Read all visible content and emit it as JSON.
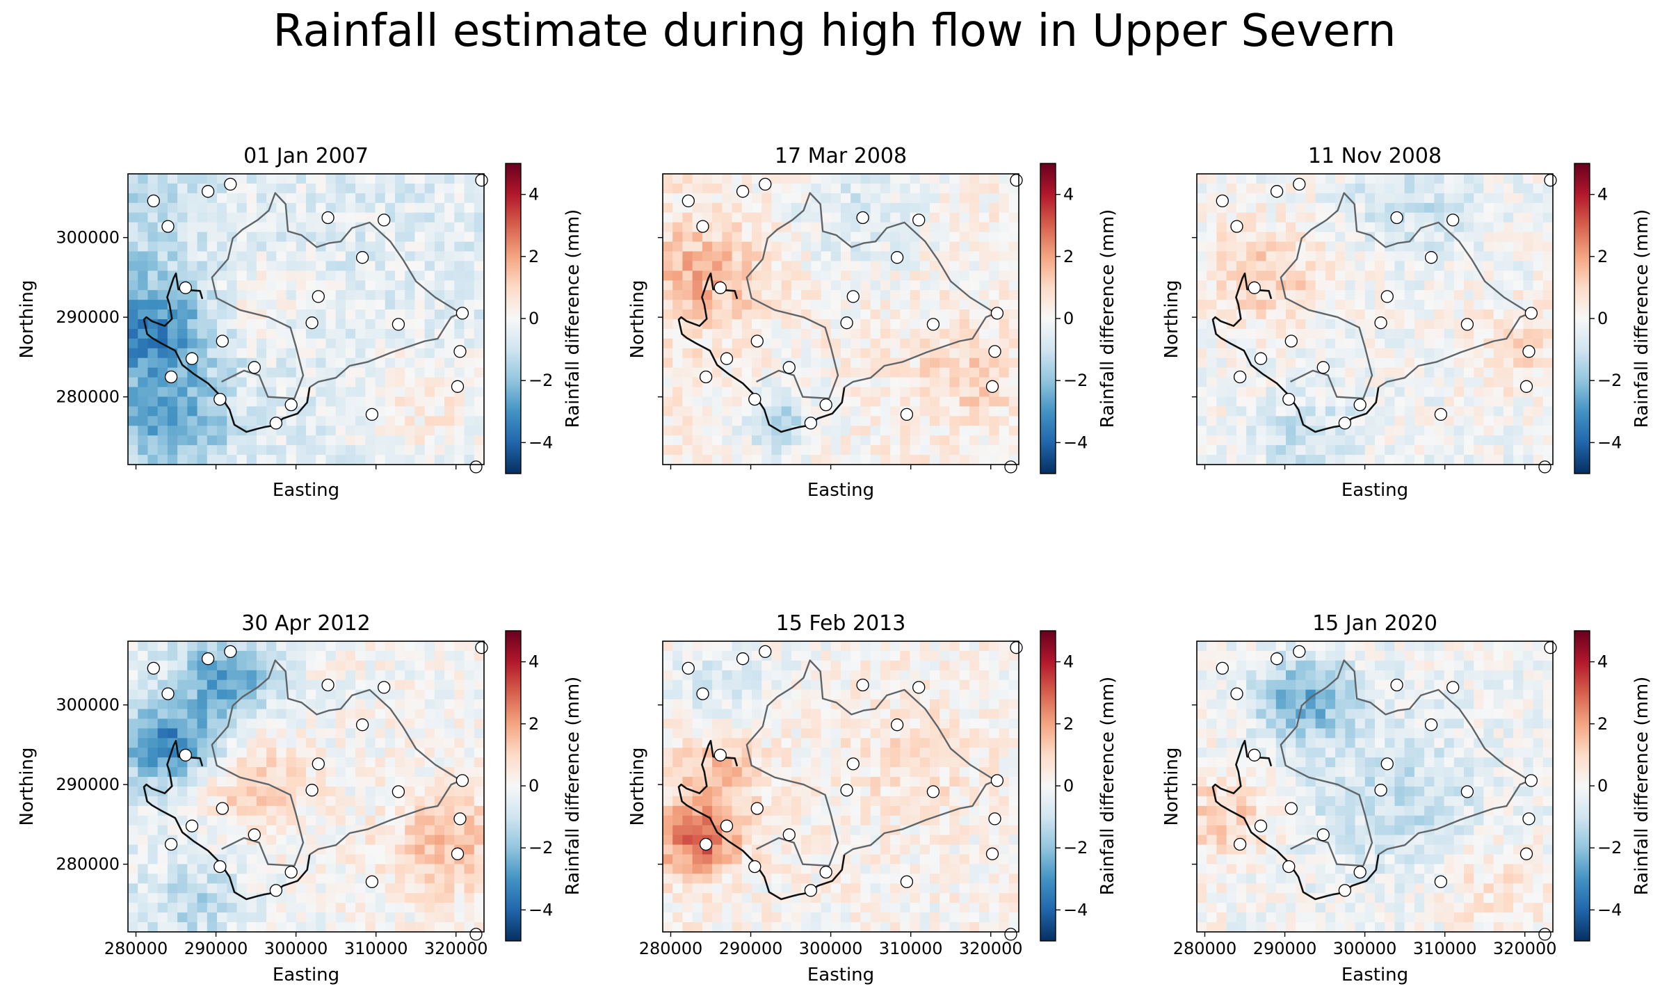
{
  "figure": {
    "title": "Rainfall estimate during high flow in Upper Severn"
  },
  "chart_data": {
    "type": "heatmap",
    "colormap": "RdBu_r",
    "clim": [
      -5,
      5
    ],
    "colorbar": {
      "label": "Rainfall difference (mm)",
      "ticks": [
        4,
        2,
        0,
        -2,
        -4
      ],
      "tick_labels": [
        "4",
        "2",
        "0",
        "−2",
        "−4"
      ]
    },
    "xlabel": "Easting",
    "ylabel": "Northing",
    "xlim": [
      279000,
      323500
    ],
    "ylim": [
      271500,
      308000
    ],
    "x_ticks": [
      280000,
      290000,
      300000,
      310000,
      320000
    ],
    "x_tick_labels": [
      "280000",
      "290000",
      "300000",
      "310000",
      "320000"
    ],
    "y_ticks": [
      300000,
      290000,
      280000
    ],
    "y_tick_labels": [
      "300000",
      "290000",
      "280000"
    ],
    "grid": false,
    "panels": [
      {
        "title": "01 Jan 2007"
      },
      {
        "title": "17 Mar 2008"
      },
      {
        "title": "11 Nov 2008"
      },
      {
        "title": "30 Apr 2012"
      },
      {
        "title": "15 Feb 2013"
      },
      {
        "title": "15 Jan 2020"
      }
    ],
    "gauge_stations": [
      [
        282200,
        304600
      ],
      [
        284000,
        301400
      ],
      [
        289000,
        305800
      ],
      [
        291800,
        306700
      ],
      [
        304000,
        302500
      ],
      [
        311000,
        302200
      ],
      [
        308300,
        297500
      ],
      [
        286200,
        293700
      ],
      [
        302800,
        292600
      ],
      [
        302000,
        289300
      ],
      [
        312800,
        289100
      ],
      [
        320800,
        290500
      ],
      [
        290800,
        287000
      ],
      [
        287000,
        284800
      ],
      [
        294800,
        283700
      ],
      [
        284400,
        282500
      ],
      [
        320500,
        285700
      ],
      [
        290500,
        279700
      ],
      [
        320200,
        281300
      ],
      [
        299400,
        279000
      ],
      [
        309500,
        277800
      ],
      [
        297500,
        276700
      ],
      [
        323200,
        307200
      ],
      [
        322500,
        271200
      ]
    ],
    "catchment_outline": [
      [
        290700,
        281900
      ],
      [
        293500,
        283300
      ],
      [
        295400,
        282700
      ],
      [
        296500,
        280000
      ],
      [
        299800,
        279800
      ],
      [
        300900,
        282700
      ],
      [
        300000,
        286300
      ],
      [
        299300,
        288700
      ],
      [
        296600,
        290000
      ],
      [
        293000,
        290900
      ],
      [
        290100,
        292400
      ],
      [
        289500,
        295000
      ],
      [
        291500,
        297300
      ],
      [
        292100,
        299900
      ],
      [
        293300,
        301000
      ],
      [
        295200,
        302200
      ],
      [
        296600,
        303400
      ],
      [
        297400,
        305600
      ],
      [
        298700,
        304200
      ],
      [
        299000,
        300800
      ],
      [
        300700,
        300300
      ],
      [
        302600,
        298800
      ],
      [
        304100,
        299300
      ],
      [
        305600,
        299500
      ],
      [
        307000,
        301200
      ],
      [
        309200,
        301900
      ],
      [
        311800,
        299500
      ],
      [
        313400,
        297200
      ],
      [
        315000,
        294500
      ],
      [
        317400,
        292500
      ],
      [
        320600,
        290500
      ],
      [
        319400,
        290000
      ],
      [
        317700,
        287300
      ],
      [
        316100,
        287000
      ],
      [
        312000,
        285600
      ],
      [
        309000,
        284400
      ],
      [
        306700,
        283900
      ],
      [
        305000,
        282400
      ],
      [
        302800,
        281900
      ],
      [
        301700,
        281200
      ]
    ],
    "river_channel": [
      [
        301700,
        281200
      ],
      [
        301400,
        279300
      ],
      [
        300200,
        277900
      ],
      [
        298400,
        277300
      ],
      [
        297200,
        276400
      ],
      [
        296000,
        276200
      ],
      [
        295200,
        276000
      ],
      [
        293800,
        275600
      ],
      [
        292300,
        276500
      ],
      [
        291700,
        278400
      ],
      [
        290500,
        280200
      ],
      [
        289000,
        281700
      ],
      [
        287200,
        282900
      ],
      [
        285800,
        284000
      ],
      [
        284900,
        285800
      ],
      [
        283200,
        286700
      ],
      [
        282000,
        287400
      ],
      [
        281400,
        287900
      ],
      [
        281000,
        289700
      ],
      [
        281300,
        290000
      ],
      [
        282000,
        289500
      ],
      [
        283600,
        288900
      ],
      [
        284500,
        289800
      ],
      [
        284200,
        291600
      ],
      [
        283900,
        292500
      ],
      [
        284700,
        294900
      ],
      [
        285000,
        295500
      ],
      [
        285300,
        293500
      ],
      [
        288000,
        293300
      ],
      [
        288300,
        292300
      ]
    ]
  }
}
